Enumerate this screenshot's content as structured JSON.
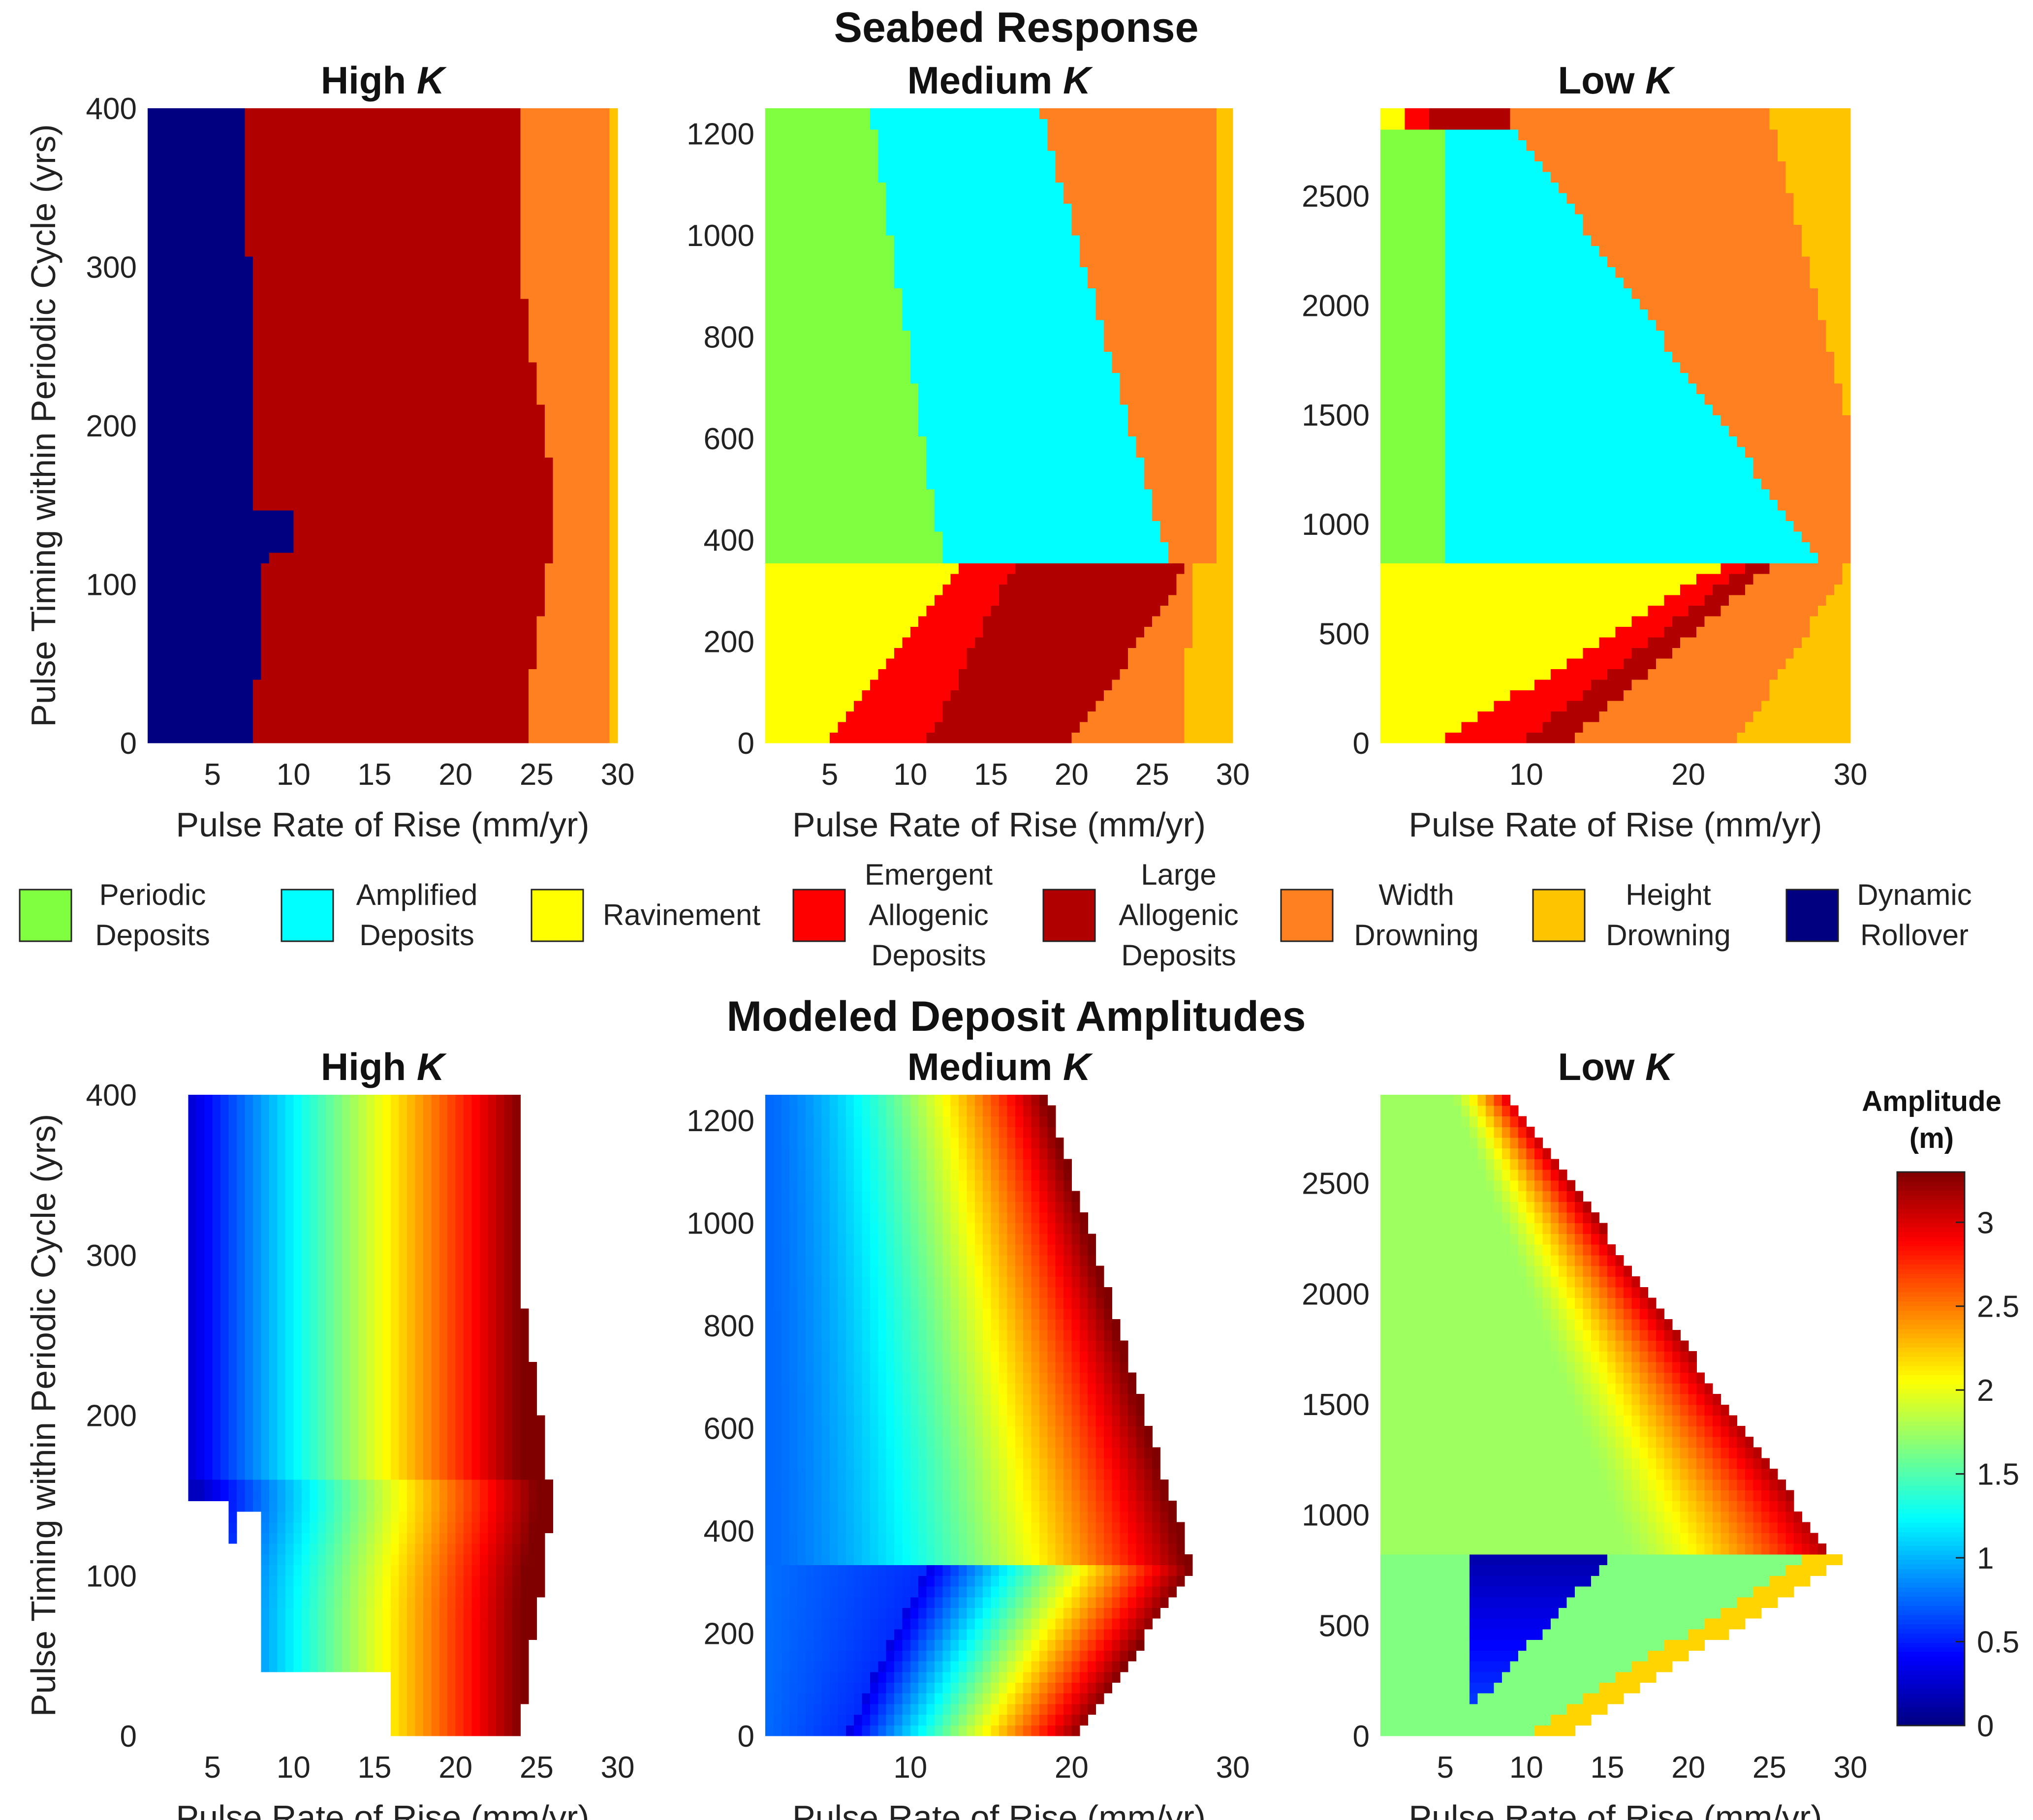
{
  "sections": {
    "top_title": "Seabed Response",
    "bottom_title": "Modeled Deposit Amplitudes"
  },
  "colorbar": {
    "title_line1": "Amplitude",
    "title_line2": "(m)",
    "range": [
      0,
      3.3
    ],
    "ticks": [
      0,
      0.5,
      1,
      1.5,
      2,
      2.5,
      3
    ],
    "tick_labels": [
      "0",
      "0.5",
      "1",
      "1.5",
      "2",
      "2.5",
      "3"
    ],
    "colormap": "jet"
  },
  "chart_data": [
    {
      "type": "heatmap",
      "section": "Seabed Response",
      "title": "High K",
      "title_main": "High ",
      "title_italic": "K",
      "xlabel": "Pulse Rate of Rise (mm/yr)",
      "ylabel": "Pulse Timing within Periodic Cycle (yrs)",
      "xlim": [
        1,
        30
      ],
      "ylim": [
        0,
        400
      ],
      "xticks": [
        5,
        10,
        15,
        20,
        25,
        30
      ],
      "xtick_labels": [
        "5",
        "10",
        "15",
        "20",
        "25",
        "30"
      ],
      "yticks": [
        0,
        100,
        200,
        300,
        400
      ],
      "ytick_labels": [
        "0",
        "100",
        "200",
        "300",
        "400"
      ],
      "regions_by_timing": [
        {
          "y_range": [
            0,
            400
          ],
          "note": "Dynamic Rollover x<~8, Large Allogenic Deposits ~8-24, Width Drowning ~24-29.5, Height Drowning >29.5"
        }
      ]
    },
    {
      "type": "heatmap",
      "section": "Seabed Response",
      "title": "Medium K",
      "title_main": "Medium ",
      "title_italic": "K",
      "xlabel": "Pulse Rate of Rise (mm/yr)",
      "xlim": [
        1,
        30
      ],
      "ylim": [
        0,
        1250
      ],
      "xticks": [
        5,
        10,
        15,
        20,
        25,
        30
      ],
      "xtick_labels": [
        "5",
        "10",
        "15",
        "20",
        "25",
        "30"
      ],
      "yticks": [
        0,
        200,
        400,
        600,
        800,
        1000,
        1200
      ],
      "ytick_labels": [
        "0",
        "200",
        "400",
        "600",
        "800",
        "1000",
        "1200"
      ],
      "regions_by_timing": [
        {
          "y_range": [
            360,
            1250
          ],
          "note": "Periodic Deposits, Amplified Deposits, Width Drowning, Height Drowning"
        },
        {
          "y_range": [
            0,
            360
          ],
          "note": "Ravinement, Emergent Allogenic Deposits, Large Allogenic Deposits, Width Drowning, Height Drowning"
        }
      ]
    },
    {
      "type": "heatmap",
      "section": "Seabed Response",
      "title": "Low K",
      "title_main": "Low ",
      "title_italic": "K",
      "xlabel": "Pulse Rate of Rise (mm/yr)",
      "xlim": [
        1,
        30
      ],
      "ylim": [
        0,
        2900
      ],
      "xticks": [
        10,
        20,
        30
      ],
      "xtick_labels": [
        "10",
        "20",
        "30"
      ],
      "yticks": [
        0,
        500,
        1000,
        1500,
        2000,
        2500
      ],
      "ytick_labels": [
        "0",
        "500",
        "1000",
        "1500",
        "2000",
        "2500"
      ],
      "regions_by_timing": [
        {
          "y_range": [
            830,
            2900
          ],
          "note": "Periodic Deposits, Amplified Deposits, Width Drowning, Height Drowning"
        },
        {
          "y_range": [
            0,
            830
          ],
          "note": "Ravinement, Emergent Allogenic Deposits, Large Allogenic Deposits, Width Drowning, Height Drowning"
        }
      ]
    },
    {
      "type": "heatmap",
      "section": "Modeled Deposit Amplitudes",
      "title": "High K",
      "title_main": "High ",
      "title_italic": "K",
      "xlabel": "Pulse Rate of Rise (mm/yr)",
      "ylabel": "Pulse Timing within Periodic Cycle (yrs)",
      "xlim": [
        1,
        30
      ],
      "ylim": [
        0,
        400
      ],
      "xticks": [
        5,
        10,
        15,
        20,
        25,
        30
      ],
      "xtick_labels": [
        "5",
        "10",
        "15",
        "20",
        "25",
        "30"
      ],
      "yticks": [
        0,
        100,
        200,
        300,
        400
      ],
      "ytick_labels": [
        "0",
        "100",
        "200",
        "300",
        "400"
      ],
      "value_range": [
        0,
        3.3
      ]
    },
    {
      "type": "heatmap",
      "section": "Modeled Deposit Amplitudes",
      "title": "Medium K",
      "title_main": "Medium ",
      "title_italic": "K",
      "xlabel": "Pulse Rate of Rise (mm/yr)",
      "xlim": [
        1,
        30
      ],
      "ylim": [
        0,
        1250
      ],
      "xticks": [
        10,
        20,
        30
      ],
      "xtick_labels": [
        "10",
        "20",
        "30"
      ],
      "yticks": [
        0,
        200,
        400,
        600,
        800,
        1000,
        1200
      ],
      "ytick_labels": [
        "0",
        "200",
        "400",
        "600",
        "800",
        "1000",
        "1200"
      ],
      "value_range": [
        0,
        3.3
      ]
    },
    {
      "type": "heatmap",
      "section": "Modeled Deposit Amplitudes",
      "title": "Low K",
      "title_main": "Low ",
      "title_italic": "K",
      "xlabel": "Pulse Rate of Rise (mm/yr)",
      "xlim": [
        1,
        30
      ],
      "ylim": [
        0,
        2900
      ],
      "xticks": [
        5,
        10,
        15,
        20,
        25,
        30
      ],
      "xtick_labels": [
        "5",
        "10",
        "15",
        "20",
        "25",
        "30"
      ],
      "yticks": [
        0,
        500,
        1000,
        1500,
        2000,
        2500
      ],
      "ytick_labels": [
        "0",
        "500",
        "1000",
        "1500",
        "2000",
        "2500"
      ],
      "value_range": [
        0,
        3.3
      ]
    }
  ],
  "legend": [
    {
      "id": "PD",
      "lines": [
        "Periodic",
        "Deposits"
      ],
      "color": "#80ff40"
    },
    {
      "id": "AD",
      "lines": [
        "Amplified",
        "Deposits"
      ],
      "color": "#00ffff"
    },
    {
      "id": "RV",
      "lines": [
        "Ravinement"
      ],
      "color": "#ffff00"
    },
    {
      "id": "EA",
      "lines": [
        "Emergent",
        "Allogenic",
        "Deposits"
      ],
      "color": "#ff0000"
    },
    {
      "id": "LA",
      "lines": [
        "Large",
        "Allogenic",
        "Deposits"
      ],
      "color": "#b00000"
    },
    {
      "id": "WD",
      "lines": [
        "Width",
        "Drowning"
      ],
      "color": "#ff8020"
    },
    {
      "id": "HD",
      "lines": [
        "Height",
        "Drowning"
      ],
      "color": "#ffc400"
    },
    {
      "id": "DR",
      "lines": [
        "Dynamic",
        "Rollover"
      ],
      "color": "#000080"
    }
  ]
}
